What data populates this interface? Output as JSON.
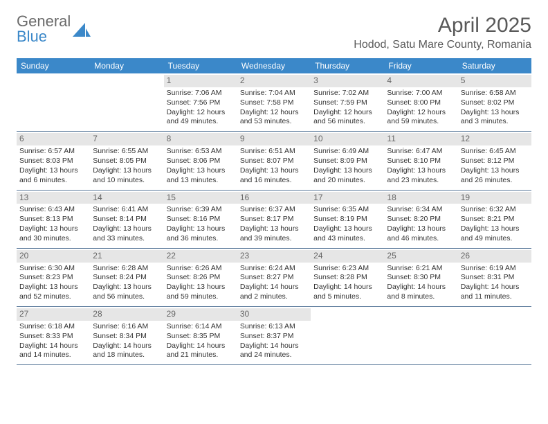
{
  "logo": {
    "text1": "General",
    "text2": "Blue"
  },
  "title": "April 2025",
  "location": "Hodod, Satu Mare County, Romania",
  "colors": {
    "header_bg": "#3b88c9",
    "header_fg": "#ffffff",
    "daynum_bg": "#e6e6e6",
    "daynum_fg": "#666666",
    "text": "#333333",
    "rule": "#5b7a9b",
    "title_fg": "#595959"
  },
  "dow": [
    "Sunday",
    "Monday",
    "Tuesday",
    "Wednesday",
    "Thursday",
    "Friday",
    "Saturday"
  ],
  "weeks": [
    [
      null,
      null,
      {
        "n": "1",
        "sr": "Sunrise: 7:06 AM",
        "ss": "Sunset: 7:56 PM",
        "dl": "Daylight: 12 hours and 49 minutes."
      },
      {
        "n": "2",
        "sr": "Sunrise: 7:04 AM",
        "ss": "Sunset: 7:58 PM",
        "dl": "Daylight: 12 hours and 53 minutes."
      },
      {
        "n": "3",
        "sr": "Sunrise: 7:02 AM",
        "ss": "Sunset: 7:59 PM",
        "dl": "Daylight: 12 hours and 56 minutes."
      },
      {
        "n": "4",
        "sr": "Sunrise: 7:00 AM",
        "ss": "Sunset: 8:00 PM",
        "dl": "Daylight: 12 hours and 59 minutes."
      },
      {
        "n": "5",
        "sr": "Sunrise: 6:58 AM",
        "ss": "Sunset: 8:02 PM",
        "dl": "Daylight: 13 hours and 3 minutes."
      }
    ],
    [
      {
        "n": "6",
        "sr": "Sunrise: 6:57 AM",
        "ss": "Sunset: 8:03 PM",
        "dl": "Daylight: 13 hours and 6 minutes."
      },
      {
        "n": "7",
        "sr": "Sunrise: 6:55 AM",
        "ss": "Sunset: 8:05 PM",
        "dl": "Daylight: 13 hours and 10 minutes."
      },
      {
        "n": "8",
        "sr": "Sunrise: 6:53 AM",
        "ss": "Sunset: 8:06 PM",
        "dl": "Daylight: 13 hours and 13 minutes."
      },
      {
        "n": "9",
        "sr": "Sunrise: 6:51 AM",
        "ss": "Sunset: 8:07 PM",
        "dl": "Daylight: 13 hours and 16 minutes."
      },
      {
        "n": "10",
        "sr": "Sunrise: 6:49 AM",
        "ss": "Sunset: 8:09 PM",
        "dl": "Daylight: 13 hours and 20 minutes."
      },
      {
        "n": "11",
        "sr": "Sunrise: 6:47 AM",
        "ss": "Sunset: 8:10 PM",
        "dl": "Daylight: 13 hours and 23 minutes."
      },
      {
        "n": "12",
        "sr": "Sunrise: 6:45 AM",
        "ss": "Sunset: 8:12 PM",
        "dl": "Daylight: 13 hours and 26 minutes."
      }
    ],
    [
      {
        "n": "13",
        "sr": "Sunrise: 6:43 AM",
        "ss": "Sunset: 8:13 PM",
        "dl": "Daylight: 13 hours and 30 minutes."
      },
      {
        "n": "14",
        "sr": "Sunrise: 6:41 AM",
        "ss": "Sunset: 8:14 PM",
        "dl": "Daylight: 13 hours and 33 minutes."
      },
      {
        "n": "15",
        "sr": "Sunrise: 6:39 AM",
        "ss": "Sunset: 8:16 PM",
        "dl": "Daylight: 13 hours and 36 minutes."
      },
      {
        "n": "16",
        "sr": "Sunrise: 6:37 AM",
        "ss": "Sunset: 8:17 PM",
        "dl": "Daylight: 13 hours and 39 minutes."
      },
      {
        "n": "17",
        "sr": "Sunrise: 6:35 AM",
        "ss": "Sunset: 8:19 PM",
        "dl": "Daylight: 13 hours and 43 minutes."
      },
      {
        "n": "18",
        "sr": "Sunrise: 6:34 AM",
        "ss": "Sunset: 8:20 PM",
        "dl": "Daylight: 13 hours and 46 minutes."
      },
      {
        "n": "19",
        "sr": "Sunrise: 6:32 AM",
        "ss": "Sunset: 8:21 PM",
        "dl": "Daylight: 13 hours and 49 minutes."
      }
    ],
    [
      {
        "n": "20",
        "sr": "Sunrise: 6:30 AM",
        "ss": "Sunset: 8:23 PM",
        "dl": "Daylight: 13 hours and 52 minutes."
      },
      {
        "n": "21",
        "sr": "Sunrise: 6:28 AM",
        "ss": "Sunset: 8:24 PM",
        "dl": "Daylight: 13 hours and 56 minutes."
      },
      {
        "n": "22",
        "sr": "Sunrise: 6:26 AM",
        "ss": "Sunset: 8:26 PM",
        "dl": "Daylight: 13 hours and 59 minutes."
      },
      {
        "n": "23",
        "sr": "Sunrise: 6:24 AM",
        "ss": "Sunset: 8:27 PM",
        "dl": "Daylight: 14 hours and 2 minutes."
      },
      {
        "n": "24",
        "sr": "Sunrise: 6:23 AM",
        "ss": "Sunset: 8:28 PM",
        "dl": "Daylight: 14 hours and 5 minutes."
      },
      {
        "n": "25",
        "sr": "Sunrise: 6:21 AM",
        "ss": "Sunset: 8:30 PM",
        "dl": "Daylight: 14 hours and 8 minutes."
      },
      {
        "n": "26",
        "sr": "Sunrise: 6:19 AM",
        "ss": "Sunset: 8:31 PM",
        "dl": "Daylight: 14 hours and 11 minutes."
      }
    ],
    [
      {
        "n": "27",
        "sr": "Sunrise: 6:18 AM",
        "ss": "Sunset: 8:33 PM",
        "dl": "Daylight: 14 hours and 14 minutes."
      },
      {
        "n": "28",
        "sr": "Sunrise: 6:16 AM",
        "ss": "Sunset: 8:34 PM",
        "dl": "Daylight: 14 hours and 18 minutes."
      },
      {
        "n": "29",
        "sr": "Sunrise: 6:14 AM",
        "ss": "Sunset: 8:35 PM",
        "dl": "Daylight: 14 hours and 21 minutes."
      },
      {
        "n": "30",
        "sr": "Sunrise: 6:13 AM",
        "ss": "Sunset: 8:37 PM",
        "dl": "Daylight: 14 hours and 24 minutes."
      },
      null,
      null,
      null
    ]
  ]
}
